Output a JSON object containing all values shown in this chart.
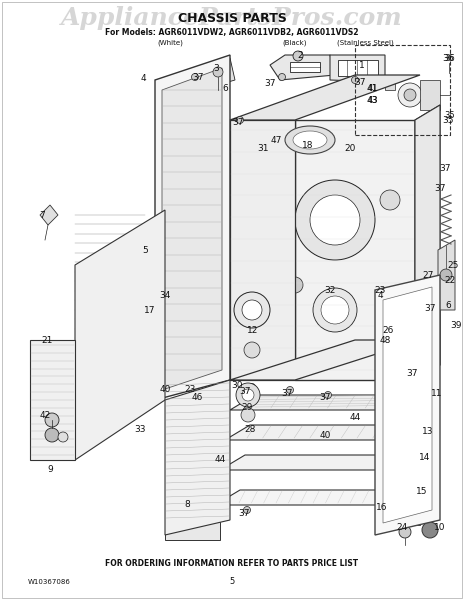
{
  "title_main": "CHASSIS PARTS",
  "watermark": "AppliancePartsPros.com",
  "model_line": "For Models: AGR6011VDW2, AGR6011VDB2, AGR6011VDS2",
  "variant_white": "(White)",
  "variant_black": "(Black)",
  "variant_ss": "(Stainless Steel)",
  "bottom_note": "FOR ORDERING INFORMATION REFER TO PARTS PRICE LIST",
  "part_number": "W10367086",
  "page_number": "5",
  "bg_color": "#ffffff",
  "text_color": "#000000",
  "watermark_color": "#bbbbbb",
  "fig_width": 4.64,
  "fig_height": 6.0,
  "dpi": 100
}
